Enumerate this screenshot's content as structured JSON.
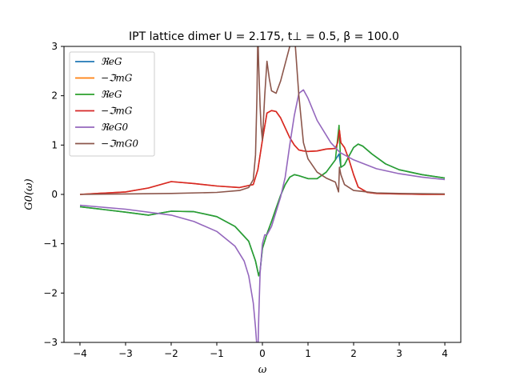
{
  "chart_data": {
    "type": "line",
    "title": "IPT lattice dimer U = 2.175, t⊥ = 0.5, β = 100.0",
    "xlabel": "ω",
    "ylabel": "G0(ω)",
    "xlim": [
      -4.35,
      4.35
    ],
    "ylim": [
      -3,
      3
    ],
    "xticks": [
      -4,
      -3,
      -2,
      -1,
      0,
      1,
      2,
      3,
      4
    ],
    "xtick_labels": [
      "−4",
      "−3",
      "−2",
      "−1",
      "0",
      "1",
      "2",
      "3",
      "4"
    ],
    "yticks": [
      -3,
      -2,
      -1,
      0,
      1,
      2,
      3
    ],
    "ytick_labels": [
      "−3",
      "−2",
      "−1",
      "0",
      "1",
      "2",
      "3"
    ],
    "grid": false,
    "legend_position": "top-left",
    "series": [
      {
        "name": "ℜeG",
        "color": "#1f77b4",
        "x": [
          -4,
          -3,
          -2.5,
          -2,
          -1.5,
          -1,
          -0.6,
          -0.3,
          -0.15,
          -0.08,
          -0.05,
          0.0,
          0.1,
          0.2,
          0.3,
          0.4,
          0.5,
          0.6,
          0.7,
          0.8,
          1.0,
          1.2,
          1.4,
          1.6,
          1.68,
          1.72,
          1.8,
          1.9,
          2.0,
          2.1,
          2.2,
          2.4,
          2.7,
          3.0,
          3.5,
          4.0
        ],
        "y": [
          -0.25,
          -0.36,
          -0.42,
          -0.34,
          -0.35,
          -0.45,
          -0.65,
          -0.95,
          -1.35,
          -1.65,
          -1.55,
          -1.1,
          -0.8,
          -0.55,
          -0.28,
          -0.02,
          0.2,
          0.35,
          0.4,
          0.38,
          0.32,
          0.32,
          0.45,
          0.7,
          0.82,
          0.55,
          0.6,
          0.78,
          0.95,
          1.02,
          0.98,
          0.82,
          0.62,
          0.5,
          0.4,
          0.33
        ]
      },
      {
        "name": "−ℑmG",
        "color": "#ff7f0e",
        "x": [
          -4,
          -3,
          -2.5,
          -2,
          -1.5,
          -1,
          -0.5,
          -0.2,
          -0.1,
          0.0,
          0.1,
          0.2,
          0.3,
          0.4,
          0.5,
          0.6,
          0.7,
          0.8,
          0.9,
          1.0,
          1.2,
          1.4,
          1.6,
          1.65,
          1.69,
          1.72,
          1.8,
          1.9,
          2.0,
          2.1,
          2.3,
          2.5,
          3.0,
          3.5,
          4.0
        ],
        "y": [
          0.0,
          0.05,
          0.13,
          0.26,
          0.22,
          0.17,
          0.14,
          0.2,
          0.5,
          1.1,
          1.65,
          1.7,
          1.68,
          1.55,
          1.35,
          1.15,
          1.0,
          0.9,
          0.88,
          0.87,
          0.88,
          0.92,
          0.93,
          1.05,
          1.3,
          1.05,
          0.95,
          0.7,
          0.4,
          0.15,
          0.04,
          0.02,
          0.01,
          0.0,
          0.0
        ]
      },
      {
        "name": "ℜeG",
        "color": "#2ca02c",
        "x": [
          -4,
          -3,
          -2.5,
          -2,
          -1.5,
          -1,
          -0.6,
          -0.3,
          -0.15,
          -0.08,
          -0.05,
          0.0,
          0.1,
          0.2,
          0.3,
          0.4,
          0.5,
          0.6,
          0.7,
          0.8,
          1.0,
          1.2,
          1.4,
          1.6,
          1.68,
          1.72,
          1.8,
          1.9,
          2.0,
          2.1,
          2.2,
          2.4,
          2.7,
          3.0,
          3.5,
          4.0
        ],
        "y": [
          -0.25,
          -0.36,
          -0.42,
          -0.34,
          -0.35,
          -0.45,
          -0.65,
          -0.95,
          -1.35,
          -1.65,
          -1.55,
          -1.1,
          -0.8,
          -0.55,
          -0.28,
          -0.02,
          0.2,
          0.35,
          0.4,
          0.38,
          0.32,
          0.32,
          0.45,
          0.7,
          1.4,
          0.55,
          0.6,
          0.78,
          0.95,
          1.02,
          0.98,
          0.82,
          0.62,
          0.5,
          0.4,
          0.33
        ]
      },
      {
        "name": "−ℑmG",
        "color": "#d62728",
        "x": [
          -4,
          -3,
          -2.5,
          -2,
          -1.5,
          -1,
          -0.5,
          -0.2,
          -0.1,
          0.0,
          0.1,
          0.2,
          0.3,
          0.4,
          0.5,
          0.6,
          0.7,
          0.8,
          0.9,
          1.0,
          1.2,
          1.4,
          1.6,
          1.65,
          1.69,
          1.72,
          1.8,
          1.9,
          2.0,
          2.1,
          2.3,
          2.5,
          3.0,
          3.5,
          4.0
        ],
        "y": [
          0.0,
          0.05,
          0.13,
          0.26,
          0.22,
          0.17,
          0.14,
          0.2,
          0.5,
          1.1,
          1.65,
          1.7,
          1.68,
          1.55,
          1.35,
          1.15,
          1.0,
          0.9,
          0.88,
          0.87,
          0.88,
          0.92,
          0.93,
          1.05,
          1.3,
          1.05,
          0.95,
          0.7,
          0.4,
          0.15,
          0.04,
          0.02,
          0.01,
          0.0,
          0.0
        ]
      },
      {
        "name": "ℜeG0",
        "color": "#9467bd",
        "x": [
          -4,
          -3,
          -2,
          -1.5,
          -1,
          -0.6,
          -0.4,
          -0.3,
          -0.2,
          -0.15,
          -0.12,
          -0.1,
          -0.08,
          -0.05,
          0.0,
          0.05,
          0.1,
          0.2,
          0.3,
          0.4,
          0.5,
          0.6,
          0.7,
          0.8,
          0.9,
          1.0,
          1.2,
          1.5,
          1.7,
          2.0,
          2.5,
          3.0,
          3.5,
          4.0
        ],
        "y": [
          -0.22,
          -0.3,
          -0.42,
          -0.55,
          -0.75,
          -1.05,
          -1.35,
          -1.65,
          -2.2,
          -2.7,
          -3.1,
          -3.3,
          -2.5,
          -1.6,
          -1.0,
          -0.82,
          -0.82,
          -0.65,
          -0.35,
          -0.05,
          0.35,
          1.0,
          1.6,
          2.05,
          2.12,
          1.95,
          1.5,
          1.05,
          0.85,
          0.7,
          0.52,
          0.42,
          0.35,
          0.3
        ]
      },
      {
        "name": "−ℑmG0",
        "color": "#8c564b",
        "x": [
          -4,
          -3,
          -2,
          -1,
          -0.5,
          -0.3,
          -0.2,
          -0.15,
          -0.12,
          -0.1,
          -0.08,
          -0.05,
          -0.03,
          0.0,
          0.05,
          0.1,
          0.15,
          0.2,
          0.3,
          0.4,
          0.5,
          0.6,
          0.7,
          0.8,
          0.9,
          1.0,
          1.2,
          1.4,
          1.6,
          1.67,
          1.69,
          1.72,
          1.8,
          2.0,
          2.5,
          3.0,
          4.0
        ],
        "y": [
          0.0,
          0.01,
          0.02,
          0.04,
          0.08,
          0.14,
          0.3,
          0.8,
          2.0,
          3.3,
          2.6,
          1.8,
          1.4,
          1.1,
          2.0,
          2.7,
          2.35,
          2.1,
          2.05,
          2.3,
          2.65,
          3.0,
          3.3,
          2.0,
          1.05,
          0.72,
          0.45,
          0.33,
          0.25,
          0.05,
          0.55,
          0.4,
          0.2,
          0.08,
          0.03,
          0.02,
          0.01
        ]
      }
    ]
  }
}
